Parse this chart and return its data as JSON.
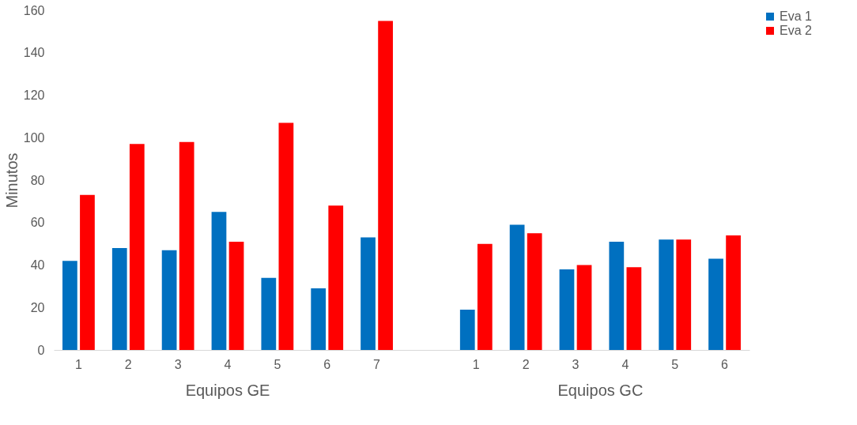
{
  "chart_data": {
    "type": "bar",
    "ylabel": "Minutos",
    "categories": [
      "1",
      "2",
      "3",
      "4",
      "5",
      "6",
      "7",
      null,
      "1",
      "2",
      "3",
      "4",
      "5",
      "6"
    ],
    "series": [
      {
        "name": "Eva 1",
        "color": "#0070c0",
        "values": [
          42,
          48,
          47,
          65,
          34,
          29,
          53,
          null,
          19,
          59,
          38,
          51,
          52,
          43
        ]
      },
      {
        "name": "Eva 2",
        "color": "#ff0000",
        "values": [
          73,
          97,
          98,
          51,
          107,
          68,
          155,
          null,
          50,
          55,
          40,
          39,
          52,
          54
        ]
      }
    ],
    "ylim": [
      0,
      160
    ],
    "yticks": [
      0,
      20,
      40,
      60,
      80,
      100,
      120,
      140,
      160
    ],
    "annotations": [
      "Equipos GE",
      "Equipos GC"
    ],
    "grid": false,
    "legend": "right"
  }
}
